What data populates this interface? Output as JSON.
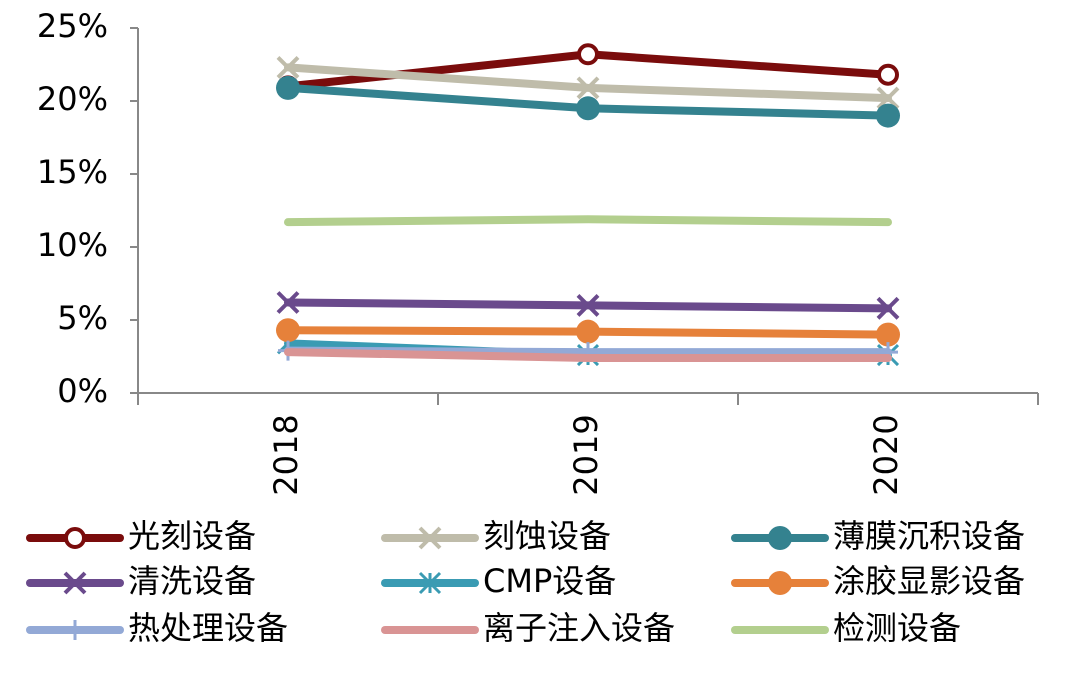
{
  "chart_data": {
    "type": "line",
    "categories": [
      "2018",
      "2019",
      "2020"
    ],
    "ylim": [
      0,
      25
    ],
    "yticks": [
      {
        "value": 0,
        "label": "0%"
      },
      {
        "value": 5,
        "label": "5%"
      },
      {
        "value": 10,
        "label": "10%"
      },
      {
        "value": 15,
        "label": "15%"
      },
      {
        "value": 20,
        "label": "20%"
      },
      {
        "value": 25,
        "label": "25%"
      }
    ],
    "legend": "bottom",
    "series": [
      {
        "name": "光刻设备",
        "color": "#7a0c0c",
        "marker": "open-circle",
        "values": [
          21.0,
          23.2,
          21.8
        ]
      },
      {
        "name": "刻蚀设备",
        "color": "#bfbcaa",
        "marker": "x",
        "values": [
          22.3,
          20.9,
          20.2
        ]
      },
      {
        "name": "薄膜沉积设备",
        "color": "#34828f",
        "marker": "circle",
        "values": [
          20.9,
          19.5,
          19.0
        ]
      },
      {
        "name": "清洗设备",
        "color": "#6a4a8c",
        "marker": "x",
        "values": [
          6.2,
          6.0,
          5.8
        ]
      },
      {
        "name": "CMP设备",
        "color": "#3a9bb3",
        "marker": "star",
        "values": [
          3.4,
          2.6,
          2.6
        ]
      },
      {
        "name": "涂胶显影设备",
        "color": "#e6813a",
        "marker": "circle",
        "values": [
          4.3,
          4.2,
          4.0
        ]
      },
      {
        "name": "热处理设备",
        "color": "#93a9d6",
        "marker": "plus",
        "values": [
          2.9,
          2.8,
          2.8
        ]
      },
      {
        "name": "离子注入设备",
        "color": "#d99494",
        "marker": "none",
        "values": [
          2.8,
          2.4,
          2.4
        ]
      },
      {
        "name": "检测设备",
        "color": "#b3cf8e",
        "marker": "none",
        "values": [
          11.7,
          11.9,
          11.7
        ]
      }
    ]
  }
}
